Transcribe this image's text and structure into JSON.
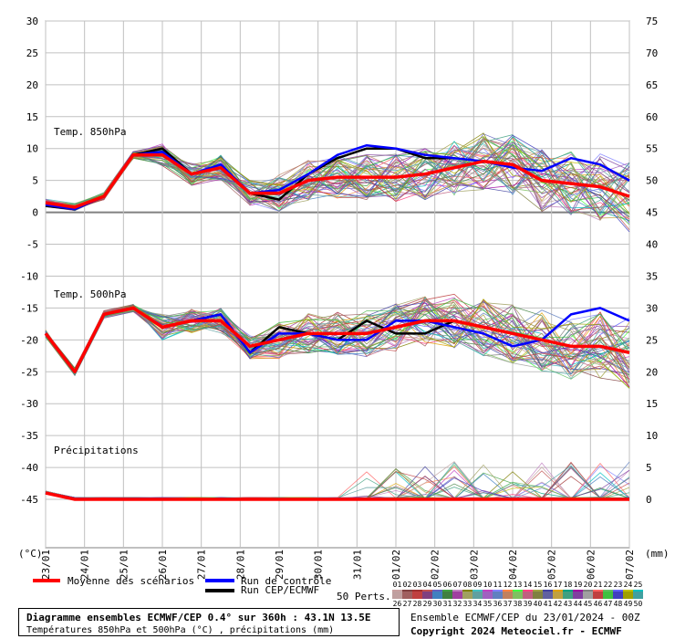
{
  "chart_data": {
    "type": "line",
    "x_labels": [
      "23/01",
      "24/01",
      "25/01",
      "26/01",
      "27/01",
      "28/01",
      "29/01",
      "30/01",
      "31/01",
      "01/02",
      "02/02",
      "03/02",
      "04/02",
      "05/02",
      "06/02",
      "07/02"
    ],
    "left_axis": {
      "unit": "(°C)",
      "min": -45,
      "max": 30,
      "ticks": [
        30,
        25,
        20,
        15,
        10,
        5,
        0,
        -5,
        -10,
        -15,
        -20,
        -25,
        -30,
        -35,
        -40,
        -45
      ]
    },
    "right_axis": {
      "unit": "(mm)",
      "min": 0,
      "max": 75,
      "ticks": [
        75,
        70,
        65,
        60,
        55,
        50,
        45,
        40,
        35,
        30,
        25,
        20,
        15,
        10,
        5,
        0
      ]
    },
    "panels": [
      {
        "label": "Temp. 850hPa"
      },
      {
        "label": "Temp. 500hPa"
      },
      {
        "label": "Précipitations"
      }
    ],
    "series": [
      {
        "name": "Moyenne des scénarios",
        "color": "#ff0000",
        "t850": [
          1.5,
          0.8,
          2.5,
          9.0,
          9.0,
          6.0,
          7.0,
          3.0,
          3.0,
          5.0,
          5.5,
          5.5,
          5.5,
          6.0,
          7.0,
          8.0,
          7.5,
          5.0,
          4.5,
          4.0,
          2.5
        ],
        "t500": [
          -19,
          -25,
          -16,
          -15,
          -18,
          -17,
          -17,
          -21,
          -20,
          -19,
          -19,
          -19,
          -18,
          -17,
          -17,
          -18,
          -19,
          -20,
          -21,
          -21,
          -22
        ],
        "precip": [
          1,
          0,
          0,
          0,
          0,
          0,
          0,
          0,
          0,
          0,
          0,
          0,
          0,
          0,
          0,
          0,
          0,
          0,
          0,
          0,
          0
        ]
      },
      {
        "name": "Run de contrôle",
        "color": "#0000ff",
        "t850": [
          1.2,
          0.5,
          2.5,
          9.0,
          9.5,
          6.0,
          7.5,
          3.0,
          3.5,
          6.0,
          9.0,
          10.5,
          10.0,
          9.0,
          8.5,
          8.0,
          7.0,
          6.5,
          8.5,
          7.5,
          5.0
        ],
        "t500": [
          -19,
          -25,
          -16,
          -15,
          -18,
          -17,
          -16,
          -22,
          -19,
          -19,
          -20,
          -20,
          -17,
          -17,
          -18,
          -19,
          -21,
          -20,
          -16,
          -15,
          -17
        ],
        "precip": [
          1,
          0,
          0,
          0,
          0,
          0,
          0,
          0,
          0,
          0,
          0,
          0,
          0,
          0,
          0,
          0,
          0,
          0,
          0,
          0,
          0
        ]
      },
      {
        "name": "Run CEP/ECMWF",
        "color": "#000000",
        "t850": [
          1.0,
          0.5,
          2.5,
          9.0,
          10.0,
          6.0,
          7.0,
          3.0,
          2.0,
          6.0,
          8.5,
          10.0,
          10.0,
          8.5,
          8.5
        ],
        "t500": [
          -19,
          -25,
          -16,
          -15,
          -18,
          -17,
          -16,
          -22,
          -18,
          -19,
          -20,
          -17,
          -19,
          -19,
          -17
        ],
        "precip": [
          1,
          0,
          0,
          0,
          0,
          0,
          0,
          0,
          0,
          0,
          0,
          0,
          0,
          0,
          0
        ]
      }
    ],
    "perturbations": {
      "label": "50 Perts.",
      "numbers": [
        "01",
        "02",
        "03",
        "04",
        "05",
        "06",
        "07",
        "08",
        "09",
        "10",
        "11",
        "12",
        "13",
        "14",
        "15",
        "16",
        "17",
        "18",
        "19",
        "20",
        "21",
        "22",
        "23",
        "24",
        "25",
        "26",
        "27",
        "28",
        "29",
        "30",
        "31",
        "32",
        "33",
        "34",
        "35",
        "36",
        "37",
        "38",
        "39",
        "40",
        "41",
        "42",
        "43",
        "44",
        "45",
        "46",
        "47",
        "48",
        "49",
        "50"
      ],
      "colors": [
        "#c8a0a0",
        "#804040",
        "#a03030",
        "#c05050",
        "#6060c0",
        "#40a040",
        "#c080c0",
        "#808000",
        "#40c0c0",
        "#c040c0",
        "#8080ff",
        "#ff8040",
        "#40ff40",
        "#ff4080",
        "#a0a040",
        "#4040a0",
        "#e0a000",
        "#00a080",
        "#a000a0",
        "#808080",
        "#ff6060",
        "#60c060",
        "#6060ff",
        "#c0c000",
        "#00c0c0",
        "#c0a0a0",
        "#a06060",
        "#c04040",
        "#804080",
        "#4080c0",
        "#408040",
        "#a040a0",
        "#a0a060",
        "#60a0a0",
        "#a060c0",
        "#6080c0",
        "#c08060",
        "#80c060",
        "#c06080",
        "#808040",
        "#6060a0",
        "#c0a040",
        "#40a080",
        "#8040a0",
        "#a0a0a0",
        "#c04040",
        "#40c040",
        "#4040c0",
        "#a0a000",
        "#40a0a0"
      ]
    }
  },
  "legend": {
    "mean": "Moyenne des scénarios",
    "control": "Run de contrôle",
    "cep": "Run CEP/ECMWF",
    "perts": "50 Perts."
  },
  "info": {
    "title": "Diagramme ensembles ECMWF/CEP 0.4° sur 360h : 43.1N 13.5E",
    "subtitle": "Températures 850hPa et 500hPa (°C) , précipitations (mm)",
    "run": "Ensemble ECMWF/CEP du 23/01/2024 - 00Z",
    "copyright": "Copyright 2024 Meteociel.fr - ECMWF"
  },
  "colors": {
    "mean": "#ff0000",
    "control": "#0000ff",
    "cep": "#000000",
    "grid": "#c0c0c0",
    "zero": "#808080"
  }
}
